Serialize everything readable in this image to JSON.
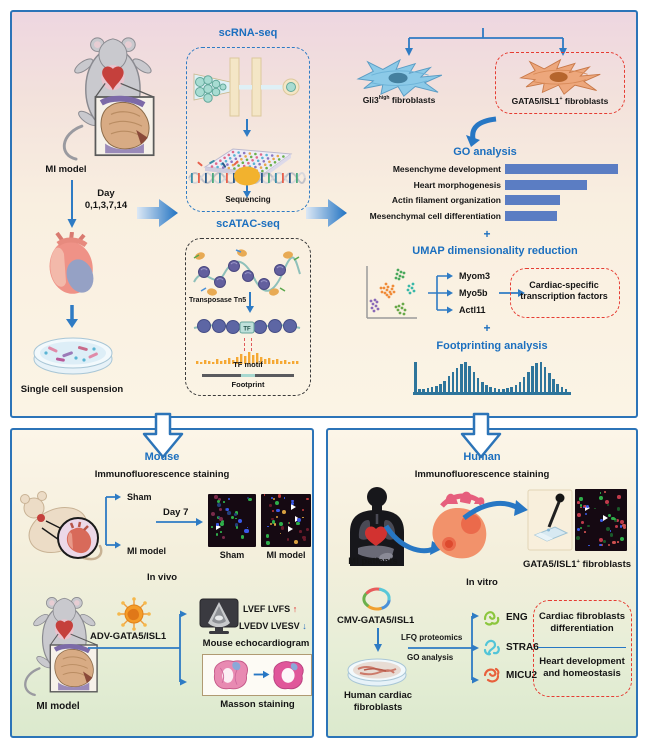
{
  "colors": {
    "panel_border": "#2c74b8",
    "heading_blue": "#1b6fbf",
    "go_bar": "#5b7dc3",
    "footprint_bar": "#2e759b",
    "red_dashed_box": "#e63c32",
    "motif_orange": "#f5a833",
    "up_arrow_red": "#e02020",
    "down_arrow_blue": "#2a6ebe"
  },
  "icons": {
    "mouse-supine-icon": "supine mouse with opened chest and magnified heart inset",
    "heart-icon": "anatomical heart",
    "petri-dish-icon": "petri dish with cell suspension",
    "microfluidic-chip-icon": "droplet microfluidics chip",
    "well-plate-icon": "multiwell plate",
    "sequencer-dna-icon": "DNA strand with polymerase",
    "chromatin-icon": "chromatin with nucleosomes and Tn5 transposase",
    "nucleosome-track-icon": "nucleosome beads with bound TF",
    "fibroblast-icon": "spindle-shaped fibroblast cell",
    "umap-scatter-icon": "UMAP cluster scatter plot",
    "down-open-arrow-icon": "hollow downward arrow",
    "right-gradient-arrow-icon": "solid gradient right arrow",
    "virus-icon": "adenovirus particle",
    "ultrasound-monitor-icon": "echocardiograph monitor",
    "masson-section-icon": "Masson trichrome stained heart section",
    "human-body-icon": "human torso silhouette with organs",
    "glass-slide-icon": "glass slide with dropper",
    "plasmid-icon": "circular plasmid map",
    "protein-icon": "protein squiggle"
  },
  "top": {
    "mi_model": "MI model",
    "day_line1": "Day",
    "day_line2": "0,1,3,7,14",
    "single_cell": "Single cell suspension",
    "scrna": {
      "title": "scRNA-seq",
      "sequencing": "Sequencing"
    },
    "scatac": {
      "title": "scATAC-seq",
      "transposase": "Transposase Tn5",
      "tf": "TF",
      "tf_motif": "TF motif",
      "footprint": "Footprint"
    },
    "gli3": {
      "gene": "Gli3",
      "sup": "high",
      "rest": " fibroblasts"
    },
    "gata5": {
      "gene": "GATA5/ISL1",
      "sup": "+",
      "rest": " fibroblasts"
    },
    "go_title": "GO analysis",
    "plus": "+",
    "umap_title": "UMAP dimensionality reduction",
    "genes": [
      "Myom3",
      "Myo5b",
      "Actl11"
    ],
    "cardiac_box": {
      "line1": "Cardiac-specific",
      "line2": "transcription factors"
    },
    "footprinting_title": "Footprinting analysis"
  },
  "mouse_panel": {
    "title": "Mouse",
    "if_staining": "Immunofluorescence staining",
    "sham": "Sham",
    "mi_model": "MI model",
    "day7": "Day 7",
    "img_sham": "Sham",
    "img_mi": "MI model",
    "in_vivo": "In vivo",
    "mi_model2": "MI model",
    "adv": "ADV-GATA5/ISL1",
    "lvef": "LVEF LVFS",
    "up_arrow": "↑",
    "lvedv": "LVEDV LVESV",
    "down_arrow": "↓",
    "echo": "Mouse echocardiogram",
    "masson": "Masson staining"
  },
  "human_panel": {
    "title": "Human",
    "if_staining": "Immunofluorescence staining",
    "mi_patients": "MI patients",
    "gata5": {
      "gene": "GATA5/ISL1",
      "sup": "+",
      "rest": " fibroblasts"
    },
    "in_vitro": "In vitro",
    "cmv": "CMV-GATA5/ISL1",
    "lfq": "LFQ proteomics",
    "go": "GO analysis",
    "proteins": [
      "ENG",
      "STRA6",
      "MICU2"
    ],
    "hcf": {
      "line1": "Human cardiac",
      "line2": "fibroblasts"
    },
    "outcome1": {
      "line1": "Cardiac fibroblasts",
      "line2": "differentiation"
    },
    "outcome2": {
      "line1": "Heart development",
      "line2": "and homeostasis"
    }
  },
  "chart_data": [
    {
      "type": "bar",
      "orientation": "horizontal",
      "title": "GO analysis",
      "categories": [
        "Mesenchyme development",
        "Heart morphogenesis",
        "Actin filament organization",
        "Mesenchymal cell differentiation"
      ],
      "values": [
        1.0,
        0.73,
        0.49,
        0.46
      ],
      "value_unit": "relative enrichment (bar length; no numeric axis shown)",
      "bar_color": "#5b7dc3",
      "legend": "none",
      "grid": "off"
    },
    {
      "type": "bar",
      "title": "Footprinting analysis",
      "description": "Aggregate Tn5 insertion footprint profile: two peaks flanking the protected TF motif",
      "values": [
        1.0,
        0.1,
        0.1,
        0.13,
        0.16,
        0.2,
        0.28,
        0.38,
        0.52,
        0.66,
        0.8,
        0.92,
        1.0,
        0.86,
        0.66,
        0.48,
        0.33,
        0.22,
        0.15,
        0.12,
        0.1,
        0.1,
        0.12,
        0.15,
        0.22,
        0.33,
        0.5,
        0.68,
        0.85,
        0.97,
        1.0,
        0.84,
        0.62,
        0.42,
        0.27,
        0.16,
        0.11
      ],
      "bar_color": "#2e759b",
      "legend": "none",
      "grid": "off"
    }
  ]
}
